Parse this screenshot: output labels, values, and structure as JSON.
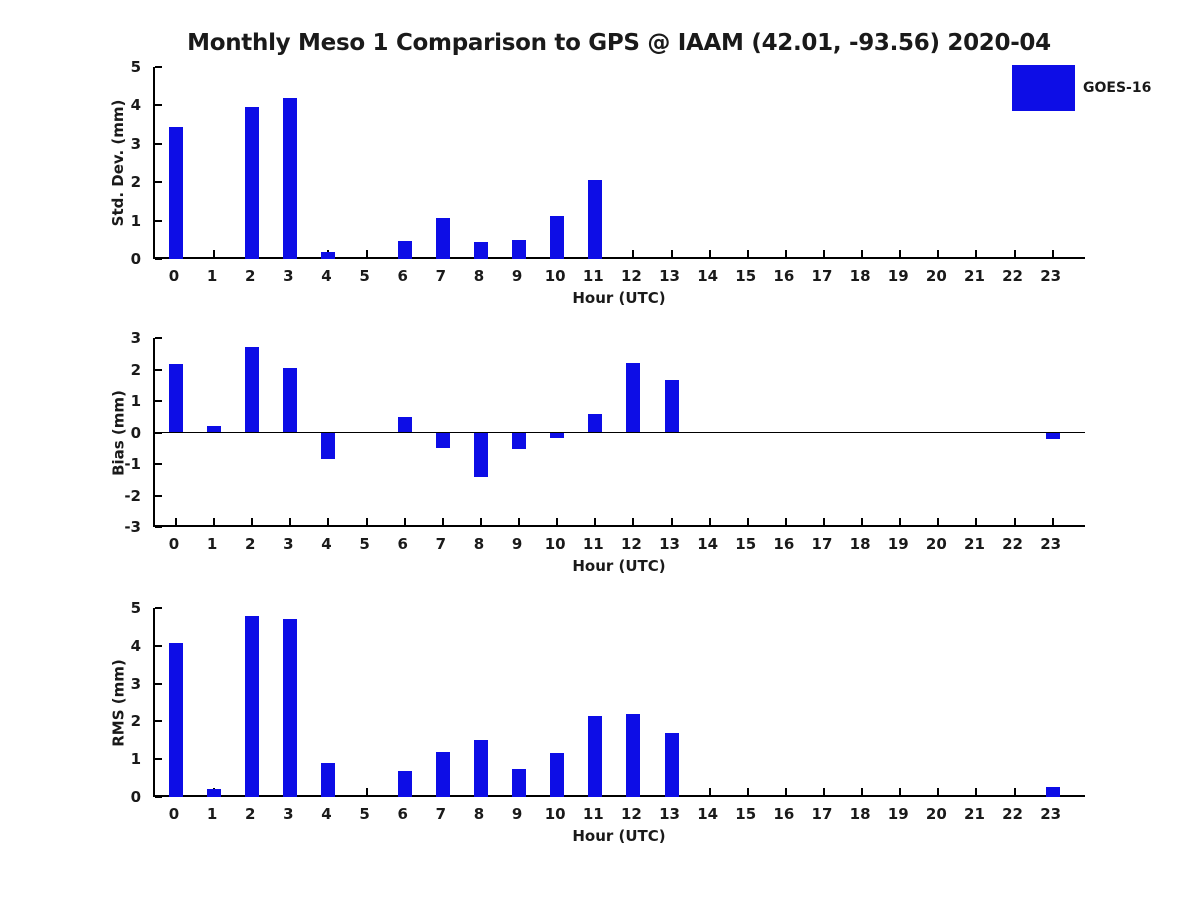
{
  "title": "Monthly Meso 1 Comparison to GPS @ IAAM (42.01, -93.56) 2020-04",
  "legend": {
    "label": "GOES-16",
    "swatch_color": "#0d0de6"
  },
  "colors": {
    "bar": "#0d0de6",
    "axis": "#000000",
    "text": "#1a1a1a",
    "background": "#ffffff"
  },
  "chart_data": [
    {
      "type": "bar",
      "title": "",
      "ylabel": "Std. Dev. (mm)",
      "xlabel": "Hour (UTC)",
      "categories": [
        0,
        1,
        2,
        3,
        4,
        5,
        6,
        7,
        8,
        9,
        10,
        11,
        12,
        13,
        14,
        15,
        16,
        17,
        18,
        19,
        20,
        21,
        22,
        23
      ],
      "values": [
        3.45,
        0,
        3.95,
        4.2,
        0.18,
        0,
        0.47,
        1.08,
        0.44,
        0.5,
        1.13,
        2.06,
        0,
        0,
        0,
        0,
        0,
        0,
        0,
        0,
        0,
        0,
        0,
        0
      ],
      "ylim": [
        0,
        5
      ],
      "yticks": [
        0,
        1,
        2,
        3,
        4,
        5
      ],
      "legend_entries": [
        "GOES-16"
      ],
      "legend_position": "upper right",
      "grid": false
    },
    {
      "type": "bar",
      "title": "",
      "ylabel": "Bias (mm)",
      "xlabel": "Hour (UTC)",
      "categories": [
        0,
        1,
        2,
        3,
        4,
        5,
        6,
        7,
        8,
        9,
        10,
        11,
        12,
        13,
        14,
        15,
        16,
        17,
        18,
        19,
        20,
        21,
        22,
        23
      ],
      "values": [
        2.17,
        0.2,
        2.7,
        2.05,
        -0.85,
        0,
        0.48,
        -0.5,
        -1.4,
        -0.52,
        -0.18,
        0.6,
        2.2,
        1.68,
        0,
        0,
        0,
        0,
        0,
        0,
        0,
        0,
        0,
        -0.2
      ],
      "ylim": [
        -3,
        3
      ],
      "yticks": [
        3,
        2,
        1,
        0,
        -1,
        -2,
        -3
      ],
      "zero_line": true,
      "grid": false
    },
    {
      "type": "bar",
      "title": "",
      "ylabel": "RMS (mm)",
      "xlabel": "Hour (UTC)",
      "categories": [
        0,
        1,
        2,
        3,
        4,
        5,
        6,
        7,
        8,
        9,
        10,
        11,
        12,
        13,
        14,
        15,
        16,
        17,
        18,
        19,
        20,
        21,
        22,
        23
      ],
      "values": [
        4.07,
        0.2,
        4.8,
        4.7,
        0.9,
        0,
        0.68,
        1.2,
        1.5,
        0.75,
        1.17,
        2.13,
        2.2,
        1.7,
        0,
        0,
        0,
        0,
        0,
        0,
        0,
        0,
        0,
        0.27
      ],
      "ylim": [
        0,
        5
      ],
      "yticks": [
        0,
        1,
        2,
        3,
        4,
        5
      ],
      "grid": false
    }
  ]
}
